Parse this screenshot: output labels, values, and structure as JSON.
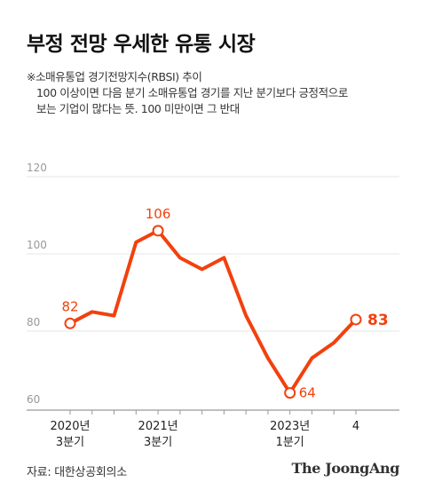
{
  "title": "부정 전망 우세한 유통 시장",
  "note": {
    "line1": "※소매유통업 경기전망지수(RBSI) 추이",
    "line2": "100 이상이면 다음 분기 소매유통업 경기를 지난 분기보다 긍정적으로",
    "line3": "보는 기업이 많다는 뜻. 100 미만이면 그 반대"
  },
  "source": "자료: 대한상공회의소",
  "brand": "The JoongAng",
  "colors": {
    "line": "#f2410e",
    "label": "#f2410e",
    "grid": "#e4e4e4",
    "axis": "#999999",
    "tick_text": "#999999"
  },
  "chart_data": {
    "type": "line",
    "title": "",
    "xlabel": "",
    "ylabel": "",
    "ylim": [
      60,
      120
    ],
    "yticks": [
      60,
      80,
      100,
      120
    ],
    "grid": true,
    "x_tick_labels": [
      {
        "index": 0,
        "lines": [
          "2020년",
          "3분기"
        ]
      },
      {
        "index": 4,
        "lines": [
          "2021년",
          "3분기"
        ]
      },
      {
        "index": 10,
        "lines": [
          "2023년",
          "1분기"
        ]
      },
      {
        "index": 13,
        "lines": [
          "4"
        ]
      }
    ],
    "series": [
      {
        "values": [
          82,
          85,
          84,
          103,
          106,
          99,
          96,
          99,
          84,
          73,
          64,
          73,
          77,
          83
        ]
      }
    ],
    "annotations": [
      {
        "index": 0,
        "text": "82"
      },
      {
        "index": 4,
        "text": "106"
      },
      {
        "index": 10,
        "text": "64"
      },
      {
        "index": 13,
        "text": "83"
      }
    ]
  }
}
